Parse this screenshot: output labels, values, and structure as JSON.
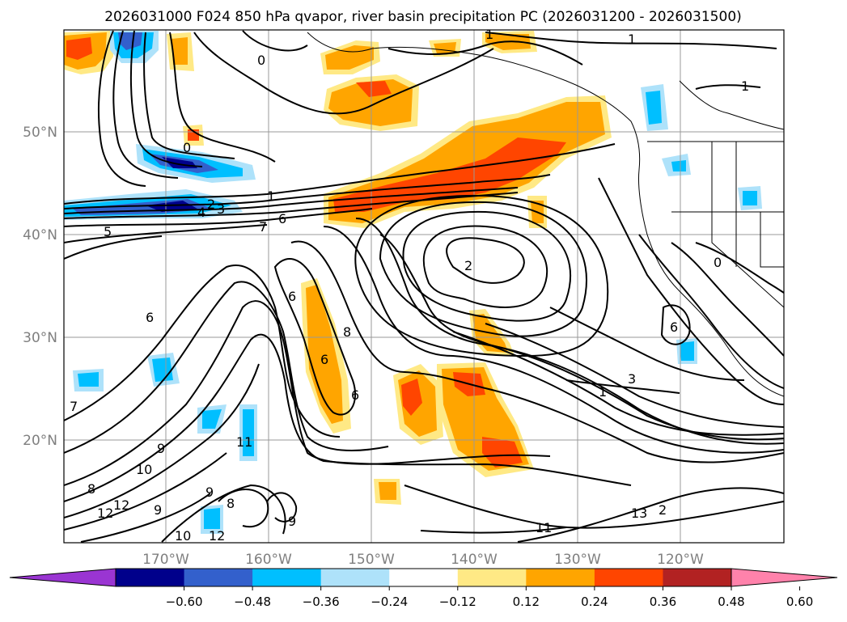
{
  "title": "2026031000 F024 850 hPa qvapor, river basin precipitation PC (2026031200 - 2026031500)",
  "colors": {
    "land_lines": "#000000",
    "grid": "#999999",
    "tick_label": "#7f7f7f",
    "contour": "#000000"
  },
  "map": {
    "lat_labels": [
      "50°N",
      "40°N",
      "30°N",
      "20°N"
    ],
    "lon_labels": [
      "170°W",
      "160°W",
      "150°W",
      "140°W",
      "130°W",
      "120°W"
    ],
    "contour_labels": [
      "1",
      "1",
      "1",
      "0",
      "0",
      "1",
      "2",
      "3",
      "4",
      "5",
      "6",
      "7",
      "2",
      "6",
      "8",
      "6",
      "6",
      "6",
      "7",
      "9",
      "11",
      "10",
      "8",
      "9",
      "12",
      "9",
      "8",
      "9",
      "12",
      "10",
      "11",
      "12",
      "13",
      "2",
      "1",
      "3",
      "0",
      "6"
    ]
  },
  "colorbar": {
    "ticks": [
      "−0.60",
      "−0.48",
      "−0.36",
      "−0.24",
      "−0.12",
      "0.12",
      "0.24",
      "0.36",
      "0.48",
      "0.60"
    ],
    "colors": [
      "#9a35d2",
      "#00008b",
      "#3360cc",
      "#00bfff",
      "#aee2fa",
      "#ffffff",
      "#ffe985",
      "#ffa500",
      "#ff4500",
      "#b22222",
      "#ff82ab"
    ]
  }
}
